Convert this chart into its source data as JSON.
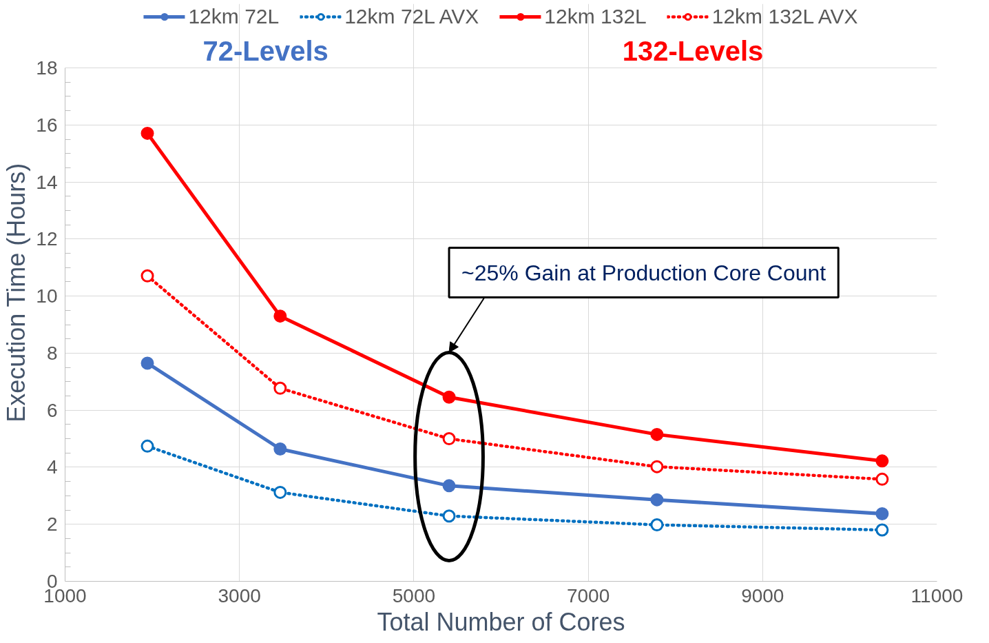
{
  "chart_data": {
    "type": "line",
    "xlabel": "Total Number of Cores",
    "ylabel": "Execution Time (Hours)",
    "x": [
      1944,
      3467,
      5404,
      7788,
      10371
    ],
    "series": [
      {
        "name": "12km 72L",
        "color": "#4472c4",
        "line_style": "solid",
        "values": [
          7.65,
          4.64,
          3.35,
          2.86,
          2.37
        ]
      },
      {
        "name": "12km 72L AVX",
        "color": "#0070c0",
        "line_style": "dotted",
        "values": [
          4.74,
          3.12,
          2.29,
          1.98,
          1.8
        ]
      },
      {
        "name": "12km 132L",
        "color": "#ff0000",
        "line_style": "solid",
        "values": [
          15.71,
          9.3,
          6.46,
          5.15,
          4.22
        ]
      },
      {
        "name": "12km 132L AVX",
        "color": "#ff0000",
        "line_style": "dotted",
        "values": [
          10.71,
          6.77,
          5.0,
          4.02,
          3.58
        ]
      }
    ],
    "xlim": [
      1000,
      11000
    ],
    "xticks": [
      1000,
      3000,
      5000,
      7000,
      9000,
      11000
    ],
    "ylim": [
      0,
      18
    ],
    "yticks": [
      0,
      2,
      4,
      6,
      8,
      10,
      12,
      14,
      16,
      18
    ],
    "grid": true,
    "legend": "top",
    "marker": "circle",
    "annotations": [
      "72-Levels",
      "132-Levels",
      "~25% Gain at Production Core Count"
    ]
  }
}
